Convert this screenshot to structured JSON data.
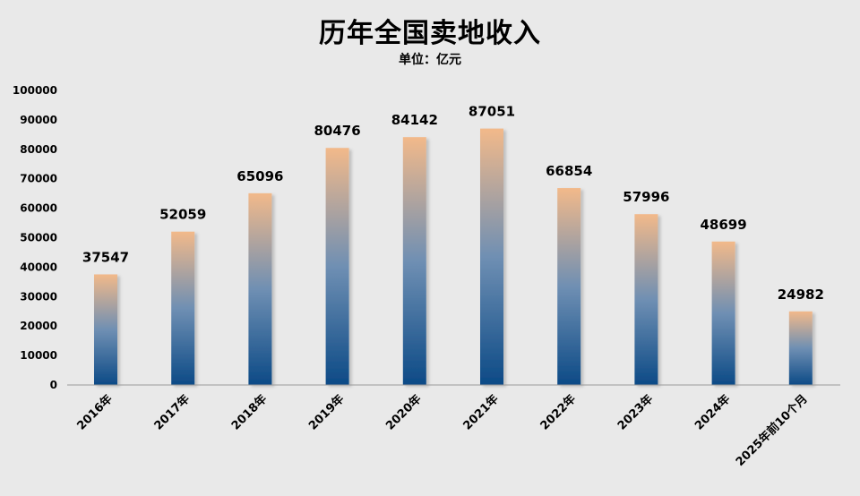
{
  "chart_data": {
    "type": "bar",
    "title": "历年全国卖地收入",
    "subtitle": "单位：亿元",
    "categories": [
      "2016年",
      "2017年",
      "2018年",
      "2019年",
      "2020年",
      "2021年",
      "2022年",
      "2023年",
      "2024年",
      "2025年前10个月"
    ],
    "values": [
      37547,
      52059,
      65096,
      80476,
      84142,
      87051,
      66854,
      57996,
      48699,
      24982
    ],
    "ylim": [
      0,
      100000
    ],
    "yticks": [
      0,
      10000,
      20000,
      30000,
      40000,
      50000,
      60000,
      70000,
      80000,
      90000,
      100000
    ],
    "grid": false,
    "legend": "none",
    "colors": {
      "bar_top": "#f2b98a",
      "bar_bottom": "#0c4a86",
      "background": "#e9e9e9"
    }
  }
}
